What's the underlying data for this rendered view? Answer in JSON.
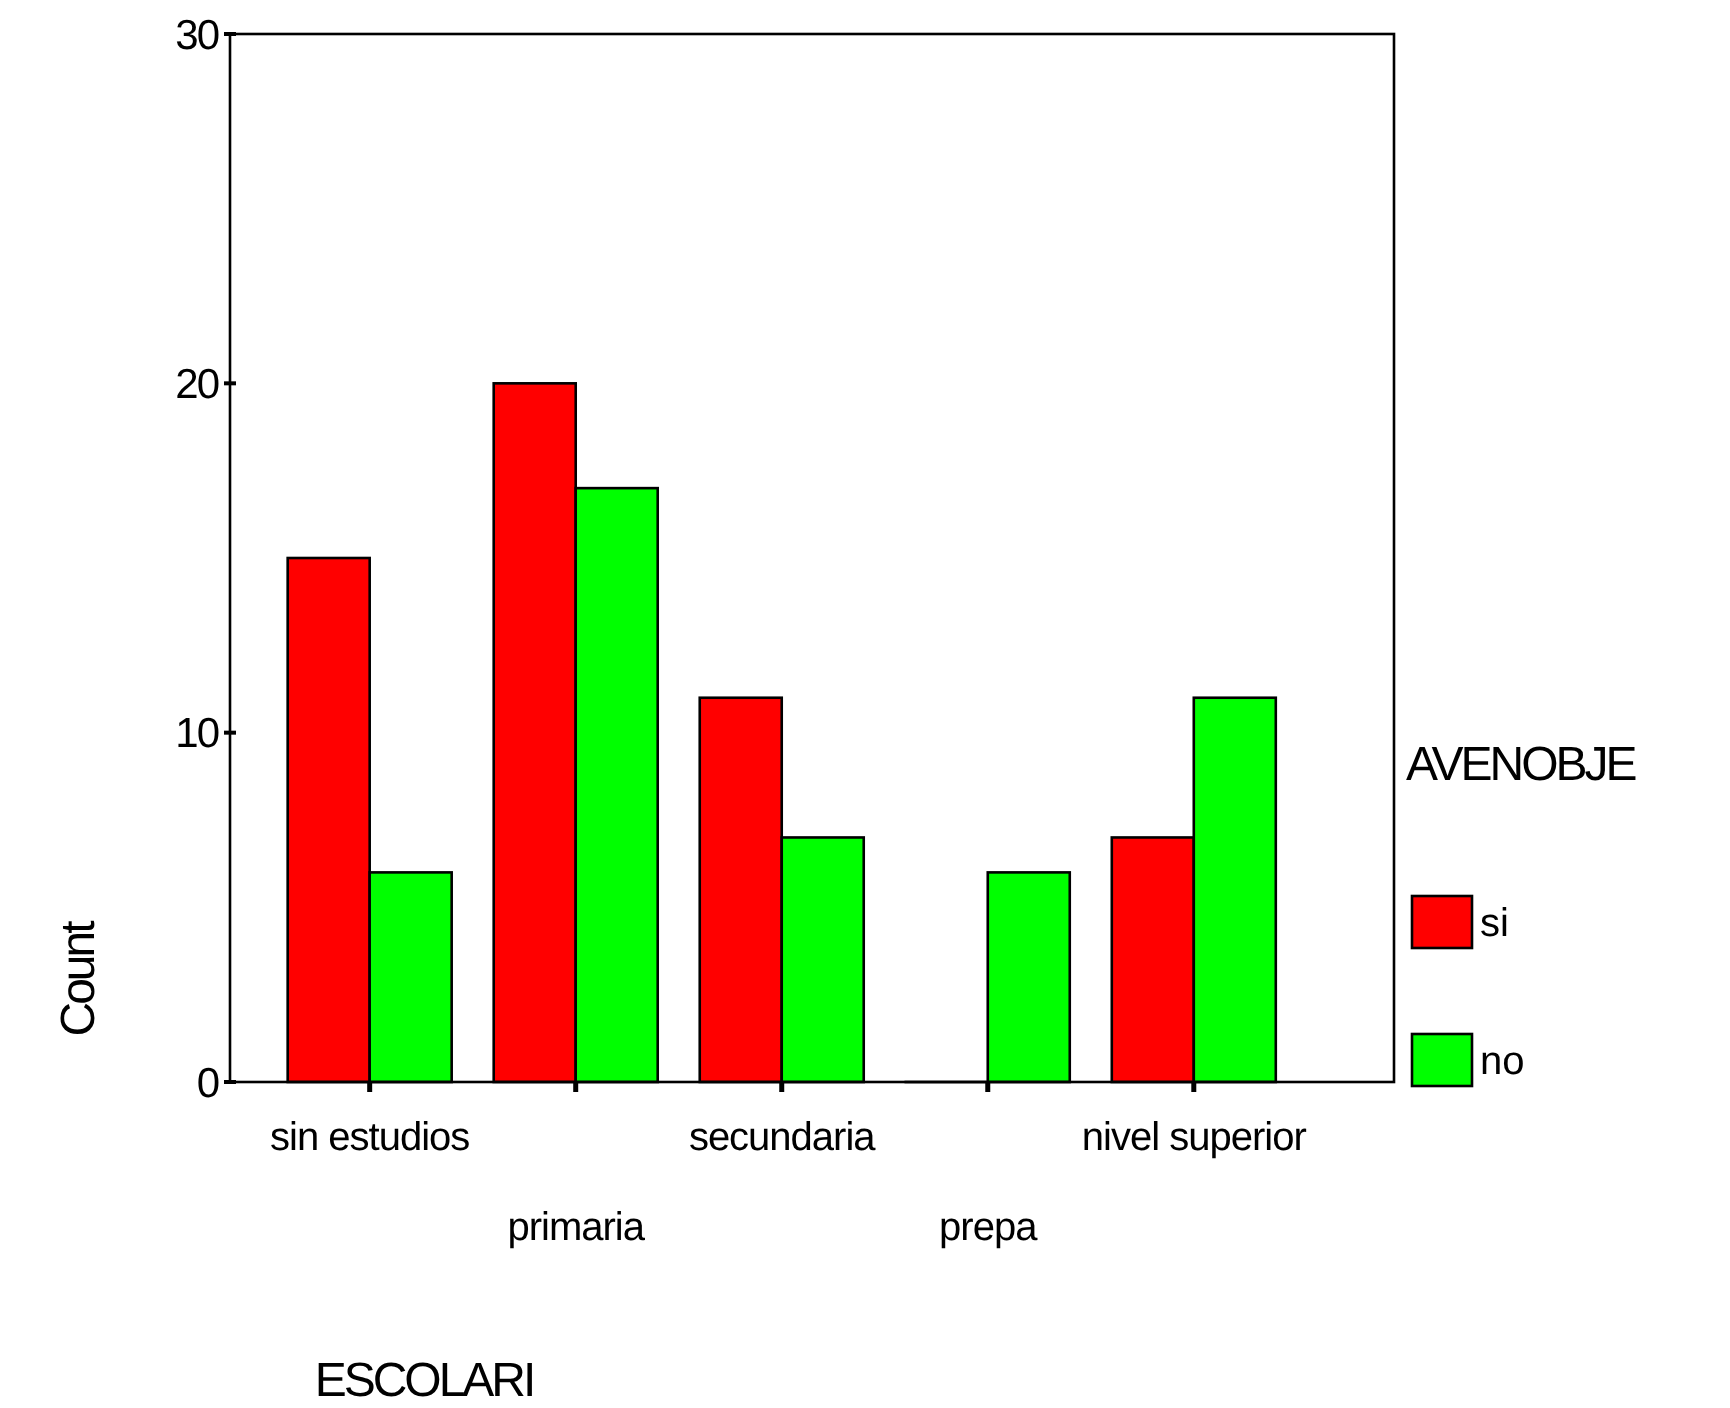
{
  "chart_data": {
    "type": "bar",
    "xlabel": "ESCOLARI",
    "ylabel": "Count",
    "legend_title": "AVENOBJE",
    "legend": "right",
    "categories": [
      "sin estudios",
      "primaria",
      "secundaria",
      "prepa",
      "nivel superior"
    ],
    "series": [
      {
        "name": "si",
        "color": "#ff0000",
        "values": [
          15,
          20,
          11,
          0,
          7
        ]
      },
      {
        "name": "no",
        "color": "#00ff00",
        "values": [
          6,
          17,
          7,
          6,
          11
        ]
      }
    ],
    "ylim": [
      0,
      30
    ],
    "yticks": [
      0,
      10,
      20,
      30
    ],
    "grid": false
  }
}
